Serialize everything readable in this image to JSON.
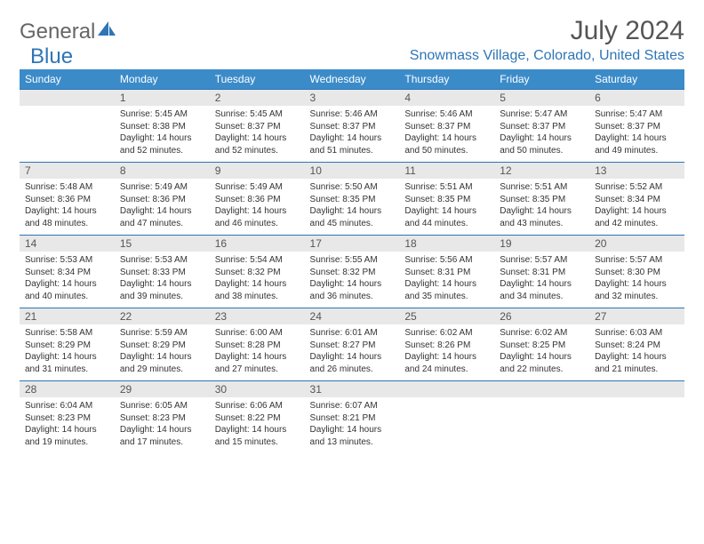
{
  "brand": {
    "part1": "General",
    "part2": "Blue"
  },
  "title": "July 2024",
  "location": "Snowmass Village, Colorado, United States",
  "colors": {
    "header_bg": "#3b8bc9",
    "header_text": "#ffffff",
    "daynum_bg": "#e8e8e8",
    "daynum_border": "#2e75b6",
    "body_text": "#333333",
    "brand_gray": "#666666",
    "brand_blue": "#2e75b6"
  },
  "weekdays": [
    "Sunday",
    "Monday",
    "Tuesday",
    "Wednesday",
    "Thursday",
    "Friday",
    "Saturday"
  ],
  "weeks": [
    [
      null,
      {
        "n": "1",
        "sr": "5:45 AM",
        "ss": "8:38 PM",
        "dl": "14 hours and 52 minutes."
      },
      {
        "n": "2",
        "sr": "5:45 AM",
        "ss": "8:37 PM",
        "dl": "14 hours and 52 minutes."
      },
      {
        "n": "3",
        "sr": "5:46 AM",
        "ss": "8:37 PM",
        "dl": "14 hours and 51 minutes."
      },
      {
        "n": "4",
        "sr": "5:46 AM",
        "ss": "8:37 PM",
        "dl": "14 hours and 50 minutes."
      },
      {
        "n": "5",
        "sr": "5:47 AM",
        "ss": "8:37 PM",
        "dl": "14 hours and 50 minutes."
      },
      {
        "n": "6",
        "sr": "5:47 AM",
        "ss": "8:37 PM",
        "dl": "14 hours and 49 minutes."
      }
    ],
    [
      {
        "n": "7",
        "sr": "5:48 AM",
        "ss": "8:36 PM",
        "dl": "14 hours and 48 minutes."
      },
      {
        "n": "8",
        "sr": "5:49 AM",
        "ss": "8:36 PM",
        "dl": "14 hours and 47 minutes."
      },
      {
        "n": "9",
        "sr": "5:49 AM",
        "ss": "8:36 PM",
        "dl": "14 hours and 46 minutes."
      },
      {
        "n": "10",
        "sr": "5:50 AM",
        "ss": "8:35 PM",
        "dl": "14 hours and 45 minutes."
      },
      {
        "n": "11",
        "sr": "5:51 AM",
        "ss": "8:35 PM",
        "dl": "14 hours and 44 minutes."
      },
      {
        "n": "12",
        "sr": "5:51 AM",
        "ss": "8:35 PM",
        "dl": "14 hours and 43 minutes."
      },
      {
        "n": "13",
        "sr": "5:52 AM",
        "ss": "8:34 PM",
        "dl": "14 hours and 42 minutes."
      }
    ],
    [
      {
        "n": "14",
        "sr": "5:53 AM",
        "ss": "8:34 PM",
        "dl": "14 hours and 40 minutes."
      },
      {
        "n": "15",
        "sr": "5:53 AM",
        "ss": "8:33 PM",
        "dl": "14 hours and 39 minutes."
      },
      {
        "n": "16",
        "sr": "5:54 AM",
        "ss": "8:32 PM",
        "dl": "14 hours and 38 minutes."
      },
      {
        "n": "17",
        "sr": "5:55 AM",
        "ss": "8:32 PM",
        "dl": "14 hours and 36 minutes."
      },
      {
        "n": "18",
        "sr": "5:56 AM",
        "ss": "8:31 PM",
        "dl": "14 hours and 35 minutes."
      },
      {
        "n": "19",
        "sr": "5:57 AM",
        "ss": "8:31 PM",
        "dl": "14 hours and 34 minutes."
      },
      {
        "n": "20",
        "sr": "5:57 AM",
        "ss": "8:30 PM",
        "dl": "14 hours and 32 minutes."
      }
    ],
    [
      {
        "n": "21",
        "sr": "5:58 AM",
        "ss": "8:29 PM",
        "dl": "14 hours and 31 minutes."
      },
      {
        "n": "22",
        "sr": "5:59 AM",
        "ss": "8:29 PM",
        "dl": "14 hours and 29 minutes."
      },
      {
        "n": "23",
        "sr": "6:00 AM",
        "ss": "8:28 PM",
        "dl": "14 hours and 27 minutes."
      },
      {
        "n": "24",
        "sr": "6:01 AM",
        "ss": "8:27 PM",
        "dl": "14 hours and 26 minutes."
      },
      {
        "n": "25",
        "sr": "6:02 AM",
        "ss": "8:26 PM",
        "dl": "14 hours and 24 minutes."
      },
      {
        "n": "26",
        "sr": "6:02 AM",
        "ss": "8:25 PM",
        "dl": "14 hours and 22 minutes."
      },
      {
        "n": "27",
        "sr": "6:03 AM",
        "ss": "8:24 PM",
        "dl": "14 hours and 21 minutes."
      }
    ],
    [
      {
        "n": "28",
        "sr": "6:04 AM",
        "ss": "8:23 PM",
        "dl": "14 hours and 19 minutes."
      },
      {
        "n": "29",
        "sr": "6:05 AM",
        "ss": "8:23 PM",
        "dl": "14 hours and 17 minutes."
      },
      {
        "n": "30",
        "sr": "6:06 AM",
        "ss": "8:22 PM",
        "dl": "14 hours and 15 minutes."
      },
      {
        "n": "31",
        "sr": "6:07 AM",
        "ss": "8:21 PM",
        "dl": "14 hours and 13 minutes."
      },
      null,
      null,
      null
    ]
  ],
  "labels": {
    "sunrise": "Sunrise:",
    "sunset": "Sunset:",
    "daylight": "Daylight:"
  }
}
